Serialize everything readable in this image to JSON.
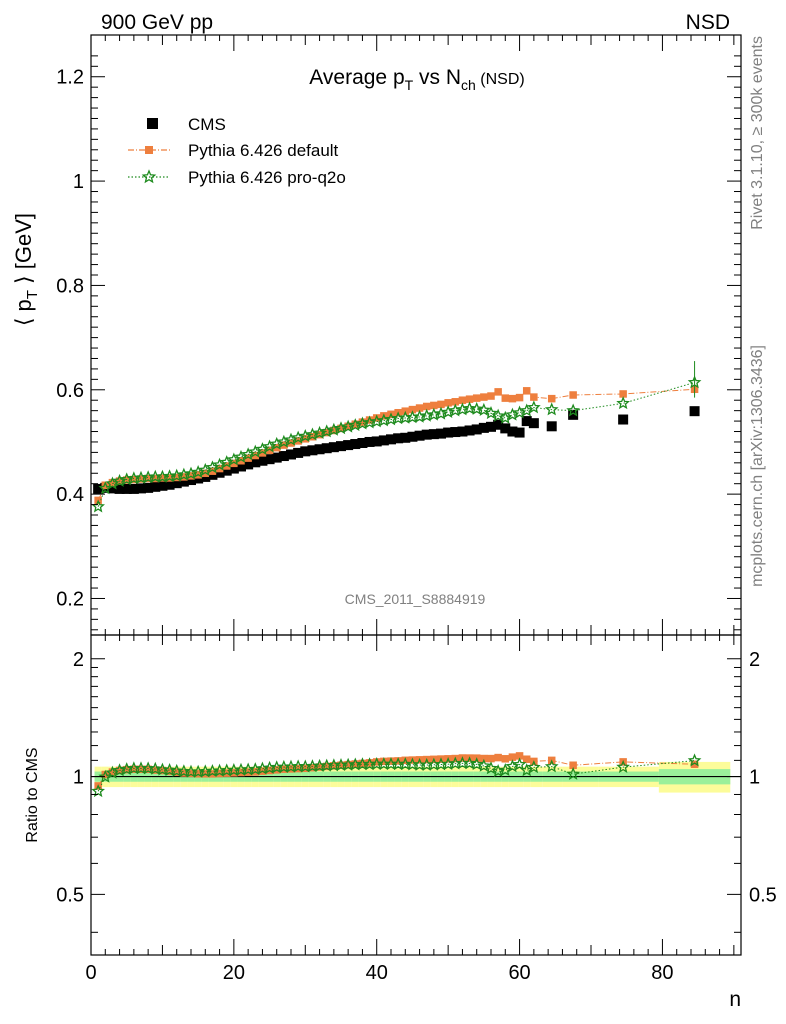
{
  "header": {
    "left": "900 GeV pp",
    "right": "NSD"
  },
  "side_labels": {
    "rivet": "Rivet 3.1.10, ≥ 300k events",
    "mcplots": "mcplots.cern.ch [arXiv:1306.3436]"
  },
  "chart_data": [
    {
      "type": "scatter",
      "title_parts": {
        "main": "Average p",
        "sub1": "T",
        "mid": " vs N",
        "sub2": "ch",
        "tail": " (NSD)"
      },
      "ylabel_parts": {
        "open": "⟨ p",
        "sub": "T",
        "close": " ⟩ [GeV]"
      },
      "xlim": [
        0,
        91
      ],
      "ylim": [
        0.13,
        1.28
      ],
      "y_ticks": [
        "0.2",
        "0.4",
        "0.6",
        "0.8",
        "1",
        "1.2"
      ],
      "watermark": "CMS_2011_S8884919",
      "legend_position": "top-left",
      "series": [
        {
          "name": "CMS",
          "color": "#000000",
          "marker": "square",
          "points": [
            [
              1,
              0.41
            ],
            [
              2,
              0.412
            ],
            [
              3,
              0.411
            ],
            [
              4,
              0.41
            ],
            [
              5,
              0.41
            ],
            [
              6,
              0.41
            ],
            [
              7,
              0.411
            ],
            [
              8,
              0.412
            ],
            [
              9,
              0.414
            ],
            [
              10,
              0.416
            ],
            [
              11,
              0.418
            ],
            [
              12,
              0.421
            ],
            [
              13,
              0.424
            ],
            [
              14,
              0.427
            ],
            [
              15,
              0.43
            ],
            [
              16,
              0.433
            ],
            [
              17,
              0.437
            ],
            [
              18,
              0.441
            ],
            [
              19,
              0.445
            ],
            [
              20,
              0.449
            ],
            [
              21,
              0.453
            ],
            [
              22,
              0.457
            ],
            [
              23,
              0.461
            ],
            [
              24,
              0.464
            ],
            [
              25,
              0.467
            ],
            [
              26,
              0.47
            ],
            [
              27,
              0.473
            ],
            [
              28,
              0.476
            ],
            [
              29,
              0.479
            ],
            [
              30,
              0.482
            ],
            [
              31,
              0.484
            ],
            [
              32,
              0.486
            ],
            [
              33,
              0.488
            ],
            [
              34,
              0.49
            ],
            [
              35,
              0.492
            ],
            [
              36,
              0.494
            ],
            [
              37,
              0.496
            ],
            [
              38,
              0.498
            ],
            [
              39,
              0.5
            ],
            [
              40,
              0.501
            ],
            [
              41,
              0.503
            ],
            [
              42,
              0.505
            ],
            [
              43,
              0.507
            ],
            [
              44,
              0.508
            ],
            [
              45,
              0.51
            ],
            [
              46,
              0.512
            ],
            [
              47,
              0.514
            ],
            [
              48,
              0.515
            ],
            [
              49,
              0.516
            ],
            [
              50,
              0.518
            ],
            [
              51,
              0.519
            ],
            [
              52,
              0.52
            ],
            [
              53,
              0.522
            ],
            [
              54,
              0.524
            ],
            [
              55,
              0.527
            ],
            [
              56,
              0.529
            ],
            [
              57,
              0.533
            ],
            [
              58,
              0.526
            ],
            [
              59,
              0.52
            ],
            [
              60,
              0.518
            ],
            [
              61,
              0.54
            ],
            [
              62,
              0.536
            ],
            [
              64.5,
              0.53
            ],
            [
              67.5,
              0.552
            ],
            [
              74.5,
              0.543
            ],
            [
              84.5,
              0.559
            ]
          ]
        },
        {
          "name": "Pythia 6.426 default",
          "color": "#ee7f3e",
          "marker": "square",
          "points": [
            [
              1,
              0.388
            ],
            [
              2,
              0.417
            ],
            [
              3,
              0.422
            ],
            [
              4,
              0.425
            ],
            [
              5,
              0.427
            ],
            [
              6,
              0.428
            ],
            [
              7,
              0.429
            ],
            [
              8,
              0.43
            ],
            [
              9,
              0.43
            ],
            [
              10,
              0.431
            ],
            [
              11,
              0.431
            ],
            [
              12,
              0.432
            ],
            [
              13,
              0.433
            ],
            [
              14,
              0.435
            ],
            [
              15,
              0.437
            ],
            [
              16,
              0.44
            ],
            [
              17,
              0.444
            ],
            [
              18,
              0.449
            ],
            [
              19,
              0.454
            ],
            [
              20,
              0.459
            ],
            [
              21,
              0.464
            ],
            [
              22,
              0.469
            ],
            [
              23,
              0.474
            ],
            [
              24,
              0.479
            ],
            [
              25,
              0.484
            ],
            [
              26,
              0.489
            ],
            [
              27,
              0.494
            ],
            [
              28,
              0.498
            ],
            [
              29,
              0.502
            ],
            [
              30,
              0.506
            ],
            [
              31,
              0.51
            ],
            [
              32,
              0.514
            ],
            [
              33,
              0.518
            ],
            [
              34,
              0.522
            ],
            [
              35,
              0.526
            ],
            [
              36,
              0.53
            ],
            [
              37,
              0.534
            ],
            [
              38,
              0.538
            ],
            [
              39,
              0.542
            ],
            [
              40,
              0.546
            ],
            [
              41,
              0.55
            ],
            [
              42,
              0.553
            ],
            [
              43,
              0.556
            ],
            [
              44,
              0.559
            ],
            [
              45,
              0.562
            ],
            [
              46,
              0.565
            ],
            [
              47,
              0.568
            ],
            [
              48,
              0.57
            ],
            [
              49,
              0.572
            ],
            [
              50,
              0.575
            ],
            [
              51,
              0.577
            ],
            [
              52,
              0.58
            ],
            [
              53,
              0.582
            ],
            [
              54,
              0.584
            ],
            [
              55,
              0.586
            ],
            [
              56,
              0.588
            ],
            [
              57,
              0.596
            ],
            [
              58,
              0.584
            ],
            [
              59,
              0.583
            ],
            [
              60,
              0.585
            ],
            [
              61,
              0.598
            ],
            [
              62,
              0.586
            ],
            [
              64.5,
              0.583
            ],
            [
              67.5,
              0.59
            ],
            [
              74.5,
              0.592
            ],
            [
              84.5,
              0.601
            ]
          ]
        },
        {
          "name": "Pythia 6.426 pro-q2o",
          "color": "#1e8b1e",
          "marker": "star",
          "points": [
            [
              1,
              0.376
            ],
            [
              2,
              0.411
            ],
            [
              3,
              0.42
            ],
            [
              4,
              0.425
            ],
            [
              5,
              0.428
            ],
            [
              6,
              0.43
            ],
            [
              7,
              0.431
            ],
            [
              8,
              0.432
            ],
            [
              9,
              0.433
            ],
            [
              10,
              0.433
            ],
            [
              11,
              0.434
            ],
            [
              12,
              0.435
            ],
            [
              13,
              0.437
            ],
            [
              14,
              0.439
            ],
            [
              15,
              0.442
            ],
            [
              16,
              0.446
            ],
            [
              17,
              0.451
            ],
            [
              18,
              0.456
            ],
            [
              19,
              0.461
            ],
            [
              20,
              0.466
            ],
            [
              21,
              0.471
            ],
            [
              22,
              0.476
            ],
            [
              23,
              0.481
            ],
            [
              24,
              0.486
            ],
            [
              25,
              0.491
            ],
            [
              26,
              0.496
            ],
            [
              27,
              0.5
            ],
            [
              28,
              0.504
            ],
            [
              29,
              0.508
            ],
            [
              30,
              0.511
            ],
            [
              31,
              0.514
            ],
            [
              32,
              0.517
            ],
            [
              33,
              0.52
            ],
            [
              34,
              0.523
            ],
            [
              35,
              0.526
            ],
            [
              36,
              0.529
            ],
            [
              37,
              0.532
            ],
            [
              38,
              0.535
            ],
            [
              39,
              0.537
            ],
            [
              40,
              0.539
            ],
            [
              41,
              0.541
            ],
            [
              42,
              0.543
            ],
            [
              43,
              0.545
            ],
            [
              44,
              0.546
            ],
            [
              45,
              0.547
            ],
            [
              46,
              0.548
            ],
            [
              47,
              0.55
            ],
            [
              48,
              0.552
            ],
            [
              49,
              0.554
            ],
            [
              50,
              0.557
            ],
            [
              51,
              0.56
            ],
            [
              52,
              0.562
            ],
            [
              53,
              0.564
            ],
            [
              54,
              0.563
            ],
            [
              55,
              0.561
            ],
            [
              56,
              0.555
            ],
            [
              57,
              0.55
            ],
            [
              58,
              0.546
            ],
            [
              59,
              0.552
            ],
            [
              60,
              0.556
            ],
            [
              61,
              0.56
            ],
            [
              62,
              0.566
            ],
            [
              64.5,
              0.562
            ],
            [
              67.5,
              0.56
            ],
            [
              74.5,
              0.574
            ],
            [
              84.5,
              0.614
            ]
          ]
        }
      ]
    },
    {
      "type": "scatter",
      "panel": "ratio",
      "ylabel": "Ratio to CMS",
      "xlabel": "n",
      "xlim": [
        0,
        91
      ],
      "ylim": [
        0.35,
        2.3
      ],
      "log_y": true,
      "x_ticks": [
        "0",
        "20",
        "40",
        "60",
        "80"
      ],
      "y_ticks": [
        "0.5",
        "1",
        "2"
      ],
      "reference_line": 1,
      "uncertainty_band_1sigma_relative": 0.03,
      "uncertainty_band_2sigma_relative": 0.06
    }
  ]
}
